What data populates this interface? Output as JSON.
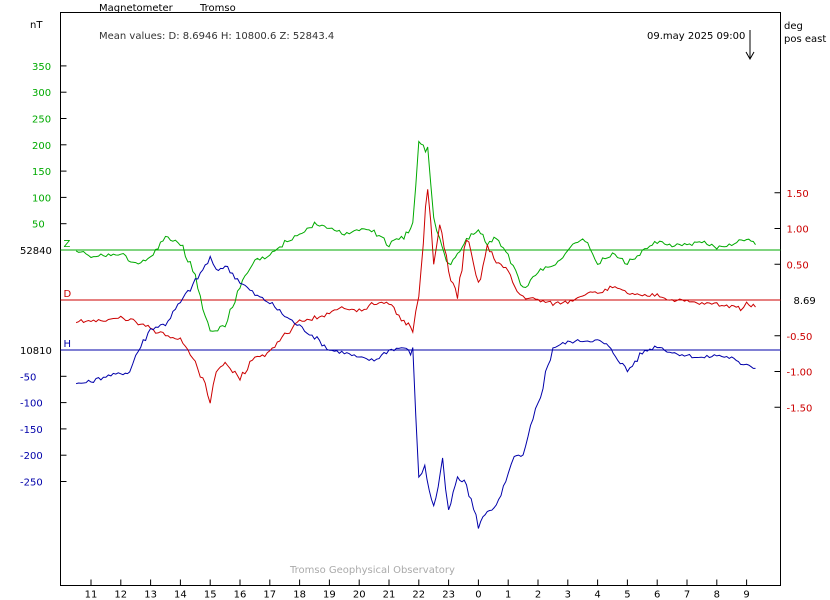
{
  "header": {
    "title": "Magnetometer",
    "station": "Tromso",
    "mean_values": "Mean values:  D: 8.6946   H: 10800.6   Z: 52843.4",
    "timestamp": "09.may 2025 09:00"
  },
  "footer": {
    "credit": "Tromso Geophysical Observatory"
  },
  "colors": {
    "Z": "#00aa00",
    "D": "#cc0000",
    "H": "#0000aa",
    "axis": "#000000",
    "grid": "#000000"
  },
  "chart_data": {
    "type": "line",
    "left_axis_unit": "nT",
    "right_axis_unit_line1": "deg",
    "right_axis_unit_line2": "pos east",
    "x_tick_labels": [
      "11",
      "12",
      "13",
      "14",
      "15",
      "16",
      "17",
      "18",
      "19",
      "20",
      "21",
      "22",
      "23",
      "0",
      "1",
      "2",
      "3",
      "4",
      "5",
      "6",
      "7",
      "8",
      "9"
    ],
    "z_axis": {
      "base_label": "52840",
      "ticks": [
        "350",
        "300",
        "250",
        "200",
        "150",
        "100",
        "50"
      ]
    },
    "h_axis": {
      "base_label": "10810",
      "ticks": [
        "-50",
        "-100",
        "-150",
        "-200",
        "-250"
      ]
    },
    "d_axis": {
      "ticks": [
        "1.50",
        "1.00",
        "0.50",
        "-0.50",
        "-1.00",
        "-1.50"
      ],
      "current_value_label": "8.69"
    },
    "series": [
      {
        "name": "Z",
        "baseline_label": "Z",
        "x": [
          10.5,
          11,
          11.5,
          12,
          12.5,
          13,
          13.5,
          14,
          14.5,
          15,
          15.5,
          16,
          16.5,
          17,
          17.5,
          18,
          18.5,
          19,
          19.5,
          20,
          20.5,
          21,
          21.5,
          21.8,
          22,
          22.3,
          22.5,
          22.7,
          23,
          23.3,
          23.6,
          24,
          24.3,
          24.6,
          25,
          25.5,
          26,
          26.5,
          27,
          27.5,
          28,
          28.5,
          29,
          29.5,
          30,
          30.5,
          31,
          31.5,
          32,
          32.5,
          33,
          33.3
        ],
        "y": [
          0,
          -12,
          -10,
          -8,
          -25,
          -18,
          25,
          15,
          -50,
          -155,
          -145,
          -70,
          -20,
          -12,
          15,
          30,
          50,
          42,
          30,
          40,
          35,
          10,
          25,
          45,
          210,
          185,
          60,
          20,
          -30,
          -8,
          20,
          40,
          10,
          25,
          -10,
          -75,
          -40,
          -30,
          0,
          25,
          -25,
          -8,
          -25,
          -4,
          15,
          8,
          10,
          15,
          5,
          12,
          20,
          10
        ]
      },
      {
        "name": "D",
        "baseline_label": "D",
        "x": [
          10.5,
          11,
          11.5,
          12,
          12.5,
          13,
          13.5,
          14,
          14.5,
          15,
          15.2,
          15.5,
          16,
          16.5,
          17,
          17.5,
          18,
          18.5,
          19,
          19.5,
          20,
          20.5,
          21,
          21.5,
          21.8,
          22,
          22.3,
          22.5,
          22.7,
          23,
          23.3,
          23.6,
          24,
          24.3,
          24.6,
          25,
          25.3,
          25.5,
          26,
          26.5,
          27,
          27.5,
          28,
          28.5,
          29,
          29.5,
          30,
          30.5,
          31,
          31.5,
          32,
          32.5,
          32.8,
          33,
          33.3
        ],
        "y": [
          -0.3,
          -0.28,
          -0.3,
          -0.25,
          -0.3,
          -0.4,
          -0.5,
          -0.55,
          -0.85,
          -1.4,
          -1.0,
          -0.9,
          -1.1,
          -0.8,
          -0.75,
          -0.5,
          -0.3,
          -0.25,
          -0.2,
          -0.1,
          -0.15,
          -0.05,
          -0.05,
          -0.3,
          -0.4,
          0.0,
          1.6,
          0.5,
          1.05,
          0.4,
          0.05,
          0.9,
          0.2,
          0.75,
          0.55,
          0.4,
          0.12,
          0.05,
          0.0,
          -0.05,
          -0.02,
          0.08,
          0.1,
          0.18,
          0.1,
          0.05,
          0.08,
          0.0,
          -0.02,
          -0.05,
          -0.05,
          -0.1,
          -0.12,
          -0.05,
          -0.1
        ]
      },
      {
        "name": "H",
        "baseline_label": "H",
        "x": [
          10.5,
          11,
          11.5,
          12,
          12.3,
          12.5,
          13,
          13.5,
          14,
          14.5,
          15,
          15.2,
          15.5,
          16,
          16.5,
          17,
          17.5,
          18,
          18.5,
          19,
          19.5,
          20,
          20.5,
          21,
          21.5,
          21.8,
          22,
          22.2,
          22.5,
          22.8,
          23,
          23.3,
          23.6,
          24,
          24.3,
          24.6,
          25,
          25.2,
          25.5,
          26,
          26.5,
          27,
          27.5,
          28,
          28.3,
          28.6,
          29,
          29.5,
          30,
          30.5,
          31,
          31.5,
          32,
          32.5,
          32.8,
          33,
          33.3
        ],
        "y": [
          -65,
          -60,
          -50,
          -45,
          -42,
          -10,
          40,
          50,
          90,
          130,
          175,
          150,
          160,
          130,
          105,
          90,
          65,
          45,
          25,
          0,
          -5,
          -15,
          -20,
          0,
          5,
          -10,
          -240,
          -225,
          -300,
          -215,
          -310,
          -240,
          -255,
          -335,
          -305,
          -300,
          -240,
          -200,
          -205,
          -100,
          5,
          15,
          18,
          18,
          10,
          -10,
          -40,
          -5,
          8,
          -5,
          -10,
          -15,
          -10,
          -15,
          -28,
          -25,
          -35
        ]
      }
    ],
    "xlim": [
      10,
      34
    ],
    "grid": false
  }
}
